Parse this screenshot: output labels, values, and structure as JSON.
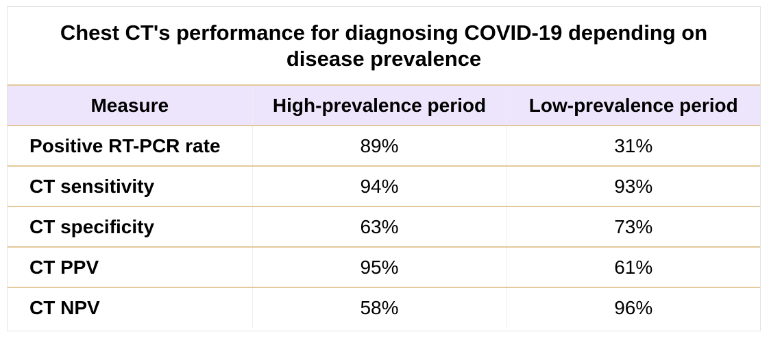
{
  "title": "Chest CT's performance for diagnosing COVID-19 depending on disease prevalence",
  "table": {
    "headers": [
      "Measure",
      "High-prevalence period",
      "Low-prevalence period"
    ],
    "rows": [
      {
        "measure": "Positive RT-PCR rate",
        "high": "89%",
        "low": "31%"
      },
      {
        "measure": "CT sensitivity",
        "high": "94%",
        "low": "93%"
      },
      {
        "measure": "CT specificity",
        "high": "63%",
        "low": "73%"
      },
      {
        "measure": "CT PPV",
        "high": "95%",
        "low": "61%"
      },
      {
        "measure": "CT NPV",
        "high": "58%",
        "low": "96%"
      }
    ]
  },
  "colors": {
    "header_background": "#ede5fb",
    "row_divider": "#e2c89a"
  }
}
